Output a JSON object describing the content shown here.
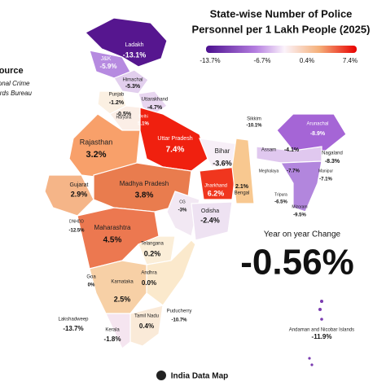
{
  "header": {
    "title_line1": "State-wise Number of Police",
    "title_line2": "Personnel per 1 Lakh People (2025)"
  },
  "legend": {
    "ticks": [
      "-13.7%",
      "-6.7%",
      "0.4%",
      "7.4%"
    ]
  },
  "source": {
    "heading": "Source",
    "line1": "National Crime",
    "line2": "Records Bureau"
  },
  "summary": {
    "label": "Year on year Change",
    "value": "-0.56%"
  },
  "footer": {
    "brand": "India Data Map"
  },
  "states": [
    {
      "name": "Ladakh",
      "value": "-13.1%"
    },
    {
      "name": "J&K",
      "value": "-5.9%"
    },
    {
      "name": "Himachal",
      "value": "-5.3%"
    },
    {
      "name": "Punjab",
      "value": "-1.2%"
    },
    {
      "name": "Uttarakhand",
      "value": "-4.7%"
    },
    {
      "name": "Haryana",
      "value": "-0.5%"
    },
    {
      "name": "Delhi",
      "value": "5.1%"
    },
    {
      "name": "Rajasthan",
      "value": "3.2%"
    },
    {
      "name": "Uttar Pradesh",
      "value": "7.4%"
    },
    {
      "name": "Bihar",
      "value": "-3.6%"
    },
    {
      "name": "Sikkim",
      "value": "-10.1%"
    },
    {
      "name": "Arunachal",
      "value": "-8.9%"
    },
    {
      "name": "Assam",
      "value": "-4.1%"
    },
    {
      "name": "Nagaland",
      "value": "-8.3%"
    },
    {
      "name": "Meghalaya",
      "value": "-7.7%"
    },
    {
      "name": "Manipur",
      "value": "-7.1%"
    },
    {
      "name": "Tripura",
      "value": "-6.5%"
    },
    {
      "name": "Mizoram",
      "value": "-9.5%"
    },
    {
      "name": "Jharkhand",
      "value": "6.2%"
    },
    {
      "name": "Bengal",
      "value": "2.1%"
    },
    {
      "name": "Gujarat",
      "value": "2.9%"
    },
    {
      "name": "Madhya Pradesh",
      "value": "3.8%"
    },
    {
      "name": "CG",
      "value": "-3%"
    },
    {
      "name": "Odisha",
      "value": "-2.4%"
    },
    {
      "name": "DNHDD",
      "value": "-12.5%"
    },
    {
      "name": "Maharashtra",
      "value": "4.5%"
    },
    {
      "name": "Telangana",
      "value": "0.2%"
    },
    {
      "name": "Goa",
      "value": "0%"
    },
    {
      "name": "Karnataka",
      "value": "2.5%"
    },
    {
      "name": "Andhra",
      "value": "0.0%"
    },
    {
      "name": "Lakshadweep",
      "value": "-13.7%"
    },
    {
      "name": "Kerala",
      "value": "-1.8%"
    },
    {
      "name": "Tamil Nadu",
      "value": "0.4%"
    },
    {
      "name": "Puducherry",
      "value": "-10.7%"
    },
    {
      "name": "Andaman and Nicobar Islands",
      "value": "-11.9%"
    }
  ]
}
